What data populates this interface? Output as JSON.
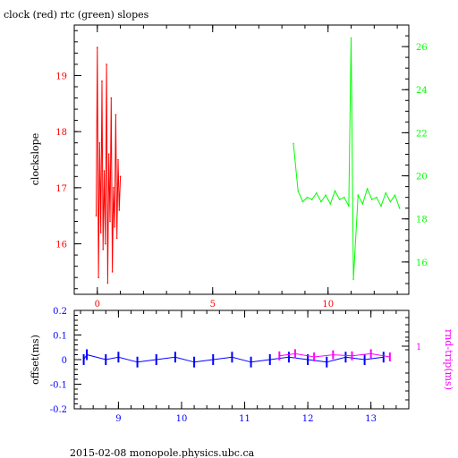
{
  "chart_data": [
    {
      "type": "line",
      "title": "clock (red) rtc (green) slopes",
      "ylabel": "clockslope",
      "xlim": [
        -1,
        13.5
      ],
      "ylim": [
        15.1,
        19.9
      ],
      "y2lim": [
        14.5,
        27.0
      ],
      "x_ticks": [
        "0",
        "5",
        "10"
      ],
      "y_ticks": [
        "16",
        "17",
        "18",
        "19"
      ],
      "y2_ticks": [
        "16",
        "18",
        "20",
        "22",
        "24",
        "26"
      ],
      "colors": {
        "left_axis": "#ff0000",
        "right_axis": "#00ff00",
        "frame": "#000000"
      },
      "series": [
        {
          "name": "clock",
          "axis": "left",
          "color": "#ff0000",
          "x": [
            -0.05,
            0.0,
            0.05,
            0.1,
            0.15,
            0.2,
            0.25,
            0.3,
            0.35,
            0.4,
            0.45,
            0.5,
            0.55,
            0.6,
            0.65,
            0.7,
            0.75,
            0.8,
            0.85,
            0.9,
            0.95,
            1.0
          ],
          "y": [
            16.5,
            19.5,
            15.4,
            17.8,
            16.2,
            18.9,
            15.9,
            17.3,
            16.0,
            19.2,
            15.3,
            17.6,
            16.4,
            18.6,
            15.5,
            17.0,
            16.3,
            18.3,
            16.1,
            17.5,
            16.6,
            17.2
          ]
        },
        {
          "name": "rtc",
          "axis": "right",
          "color": "#00ff00",
          "x": [
            8.5,
            8.7,
            8.9,
            9.1,
            9.3,
            9.5,
            9.7,
            9.9,
            10.1,
            10.3,
            10.5,
            10.7,
            10.9,
            11.0,
            11.1,
            11.3,
            11.5,
            11.7,
            11.9,
            12.1,
            12.3,
            12.5,
            12.7,
            12.9,
            13.1
          ],
          "y": [
            21.5,
            19.3,
            18.8,
            19.0,
            18.9,
            19.2,
            18.8,
            19.1,
            18.7,
            19.3,
            18.9,
            19.0,
            18.6,
            26.4,
            15.2,
            19.1,
            18.7,
            19.4,
            18.9,
            19.0,
            18.6,
            19.2,
            18.8,
            19.1,
            18.5
          ]
        }
      ]
    },
    {
      "type": "scatter",
      "ylabel": "offset(ms)",
      "y2label": "rnd-trip(ms)",
      "xlim": [
        8.3,
        13.6
      ],
      "ylim": [
        -0.2,
        0.2
      ],
      "x_ticks": [
        "9",
        "10",
        "11",
        "12",
        "13"
      ],
      "y_ticks": [
        "0.2",
        "0.1",
        "0",
        "-0.1",
        "-0.2"
      ],
      "y2_ticks": [
        "1"
      ],
      "colors": {
        "left_axis": "#0000ff",
        "right_axis": "#ff00ff",
        "frame": "#000000"
      },
      "series": [
        {
          "name": "offset",
          "color": "#0000ff",
          "x": [
            8.45,
            8.5,
            8.8,
            9.0,
            9.3,
            9.6,
            9.9,
            10.2,
            10.5,
            10.8,
            11.1,
            11.4,
            11.7,
            12.0,
            12.3,
            12.6,
            12.9,
            13.2
          ],
          "y": [
            0.0,
            0.02,
            0.0,
            0.01,
            -0.01,
            0.0,
            0.01,
            -0.01,
            0.0,
            0.01,
            -0.01,
            0.0,
            0.01,
            0.0,
            -0.01,
            0.01,
            0.0,
            0.01
          ]
        },
        {
          "name": "rnd-trip",
          "color": "#ff00ff",
          "x": [
            11.55,
            11.8,
            12.1,
            12.4,
            12.7,
            13.0,
            13.3
          ],
          "y": [
            0.58,
            0.6,
            0.57,
            0.59,
            0.58,
            0.6,
            0.57
          ]
        }
      ]
    }
  ],
  "footer": "2015-02-08  monopole.physics.ubc.ca"
}
